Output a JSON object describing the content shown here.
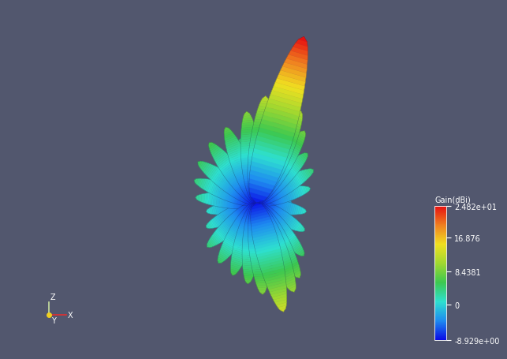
{
  "chart_data": {
    "type": "radiation_pattern",
    "colorbar": {
      "label": "Gain(dBi)",
      "range": [
        -8.929,
        24.82
      ],
      "ticks": [
        {
          "value": 24.82,
          "label": "2.482e+01"
        },
        16.876,
        8.4381,
        0,
        {
          "value": -8.929,
          "label": "-8.929e+00"
        }
      ]
    },
    "axis_labels": {
      "z": "Z",
      "y": "Y",
      "x": "X"
    },
    "lobes": [
      {
        "angle": 16,
        "gain": 24.82
      },
      {
        "angle": 166,
        "gain": 13
      },
      {
        "angle": 5,
        "gain": 12
      },
      {
        "angle": 26,
        "gain": 11
      },
      {
        "angle": -6,
        "gain": 9
      },
      {
        "angle": 34,
        "gain": 8
      },
      {
        "angle": -22,
        "gain": 7
      },
      {
        "angle": -38,
        "gain": 6
      },
      {
        "angle": -55,
        "gain": 5
      },
      {
        "angle": -70,
        "gain": 4
      },
      {
        "angle": -85,
        "gain": 3
      },
      {
        "angle": 46,
        "gain": 5
      },
      {
        "angle": 60,
        "gain": 4
      },
      {
        "angle": 75,
        "gain": 2
      },
      {
        "angle": 100,
        "gain": 1
      },
      {
        "angle": 120,
        "gain": 2
      },
      {
        "angle": 138,
        "gain": 5
      },
      {
        "angle": 150,
        "gain": 8
      },
      {
        "angle": 157,
        "gain": 10
      },
      {
        "angle": 176,
        "gain": 9
      },
      {
        "angle": 186,
        "gain": 7
      },
      {
        "angle": 198,
        "gain": 6
      },
      {
        "angle": 212,
        "gain": 5
      },
      {
        "angle": 228,
        "gain": 4
      },
      {
        "angle": 244,
        "gain": 2
      },
      {
        "angle": 260,
        "gain": 1
      },
      {
        "angle": 280,
        "gain": 0
      },
      {
        "angle": -14,
        "gain": 4
      },
      {
        "angle": 14,
        "gain": 3
      },
      {
        "angle": -48,
        "gain": 1
      },
      {
        "angle": 40,
        "gain": 0
      },
      {
        "angle": 90,
        "gain": -2
      },
      {
        "angle": -100,
        "gain": -1
      },
      {
        "angle": -120,
        "gain": -3
      },
      {
        "angle": -140,
        "gain": -2
      },
      {
        "angle": 130,
        "gain": -1
      },
      {
        "angle": 170,
        "gain": -2
      },
      {
        "angle": 200,
        "gain": -3
      },
      {
        "angle": -30,
        "gain": -2
      },
      {
        "angle": 22,
        "gain": -3
      },
      {
        "angle": -160,
        "gain": -4
      },
      {
        "angle": 110,
        "gain": -4
      },
      {
        "angle": 65,
        "gain": -3
      },
      {
        "angle": -65,
        "gain": -4
      }
    ]
  }
}
